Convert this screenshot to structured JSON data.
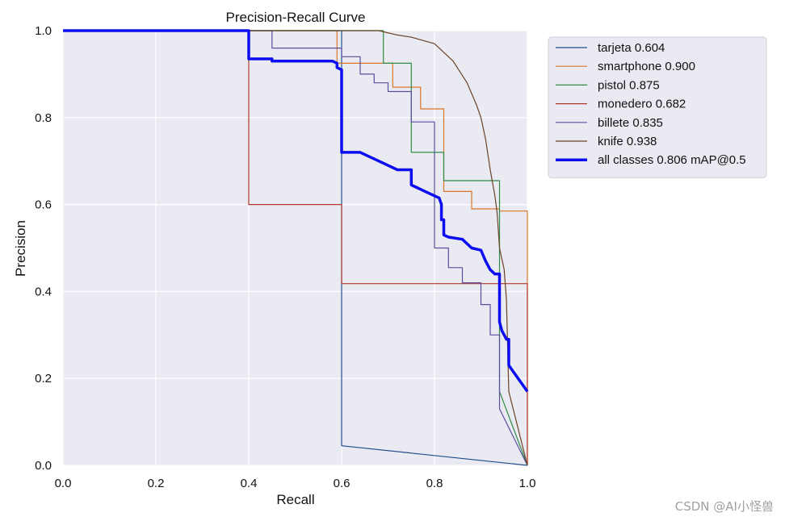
{
  "chart_data": {
    "type": "line",
    "title": "Precision-Recall Curve",
    "xlabel": "Recall",
    "ylabel": "Precision",
    "xlim": [
      0,
      1
    ],
    "ylim": [
      0,
      1
    ],
    "xticks": [
      "0.0",
      "0.2",
      "0.4",
      "0.6",
      "0.8",
      "1.0"
    ],
    "yticks": [
      "0.0",
      "0.2",
      "0.4",
      "0.6",
      "0.8",
      "1.0"
    ],
    "grid": true,
    "legend_position": "outside-right-top",
    "series": [
      {
        "name": "tarjeta",
        "legend": "tarjeta 0.604",
        "color": "#1f4e8c",
        "width": 1.2,
        "x": [
          0,
          0.6,
          0.6,
          0.6,
          1.0,
          1.0
        ],
        "y": [
          1.0,
          1.0,
          0.5,
          0.045,
          0.0,
          0.0
        ]
      },
      {
        "name": "smartphone",
        "legend": "smartphone 0.900",
        "color": "#d9762a",
        "width": 1.2,
        "x": [
          0,
          0.59,
          0.59,
          0.71,
          0.71,
          0.77,
          0.77,
          0.82,
          0.82,
          0.88,
          0.88,
          0.94,
          0.94,
          1.0,
          1.0
        ],
        "y": [
          1.0,
          1.0,
          0.925,
          0.925,
          0.87,
          0.87,
          0.82,
          0.82,
          0.63,
          0.63,
          0.59,
          0.59,
          0.585,
          0.585,
          0.0
        ]
      },
      {
        "name": "pistol",
        "legend": "pistol 0.875",
        "color": "#2e8b46",
        "width": 1.2,
        "x": [
          0,
          0.69,
          0.69,
          0.75,
          0.75,
          0.82,
          0.82,
          0.94,
          0.94,
          0.94,
          1.0
        ],
        "y": [
          1.0,
          1.0,
          0.925,
          0.925,
          0.72,
          0.72,
          0.655,
          0.655,
          0.5,
          0.17,
          0.0
        ]
      },
      {
        "name": "monedero",
        "legend": "monedero 0.682",
        "color": "#b03a2e",
        "width": 1.2,
        "x": [
          0,
          0.4,
          0.4,
          0.6,
          0.6,
          1.0,
          1.0
        ],
        "y": [
          1.0,
          1.0,
          0.6,
          0.6,
          0.418,
          0.418,
          0.0
        ]
      },
      {
        "name": "billete",
        "legend": "billete 0.835",
        "color": "#5a4e9e",
        "width": 1.2,
        "x": [
          0,
          0.45,
          0.45,
          0.6,
          0.6,
          0.64,
          0.64,
          0.67,
          0.67,
          0.7,
          0.7,
          0.75,
          0.75,
          0.8,
          0.8,
          0.83,
          0.83,
          0.86,
          0.86,
          0.9,
          0.9,
          0.92,
          0.92,
          0.94,
          0.94,
          1.0
        ],
        "y": [
          1.0,
          1.0,
          0.96,
          0.96,
          0.94,
          0.94,
          0.9,
          0.9,
          0.88,
          0.88,
          0.86,
          0.86,
          0.79,
          0.79,
          0.5,
          0.5,
          0.455,
          0.455,
          0.42,
          0.42,
          0.37,
          0.37,
          0.3,
          0.3,
          0.13,
          0.0
        ]
      },
      {
        "name": "knife",
        "legend": "knife 0.938",
        "color": "#6b4226",
        "width": 1.2,
        "x": [
          0,
          0.68,
          0.72,
          0.75,
          0.8,
          0.84,
          0.87,
          0.89,
          0.9,
          0.91,
          0.92,
          0.93,
          0.935,
          0.94,
          0.95,
          0.955,
          0.96,
          1.0
        ],
        "y": [
          1.0,
          1.0,
          0.99,
          0.985,
          0.97,
          0.93,
          0.88,
          0.83,
          0.8,
          0.75,
          0.68,
          0.62,
          0.58,
          0.5,
          0.45,
          0.38,
          0.17,
          0.0
        ]
      },
      {
        "name": "all classes",
        "legend": "all classes 0.806 mAP@0.5",
        "color": "#0d0df2",
        "width": 3.5,
        "x": [
          0,
          0.4,
          0.4,
          0.45,
          0.45,
          0.55,
          0.58,
          0.59,
          0.59,
          0.6,
          0.6,
          0.64,
          0.66,
          0.68,
          0.7,
          0.72,
          0.75,
          0.75,
          0.76,
          0.78,
          0.8,
          0.81,
          0.815,
          0.815,
          0.82,
          0.82,
          0.83,
          0.86,
          0.88,
          0.9,
          0.91,
          0.92,
          0.93,
          0.94,
          0.94,
          0.945,
          0.95,
          0.955,
          0.96,
          0.96,
          1.0,
          1.0
        ],
        "y": [
          1.0,
          1.0,
          0.935,
          0.935,
          0.93,
          0.93,
          0.93,
          0.925,
          0.915,
          0.91,
          0.72,
          0.72,
          0.71,
          0.7,
          0.69,
          0.68,
          0.68,
          0.645,
          0.64,
          0.63,
          0.62,
          0.615,
          0.6,
          0.565,
          0.565,
          0.53,
          0.525,
          0.52,
          0.5,
          0.495,
          0.47,
          0.45,
          0.44,
          0.44,
          0.33,
          0.31,
          0.3,
          0.29,
          0.29,
          0.23,
          0.17,
          0.17
        ]
      }
    ]
  },
  "watermark": "CSDN @AI小怪兽"
}
